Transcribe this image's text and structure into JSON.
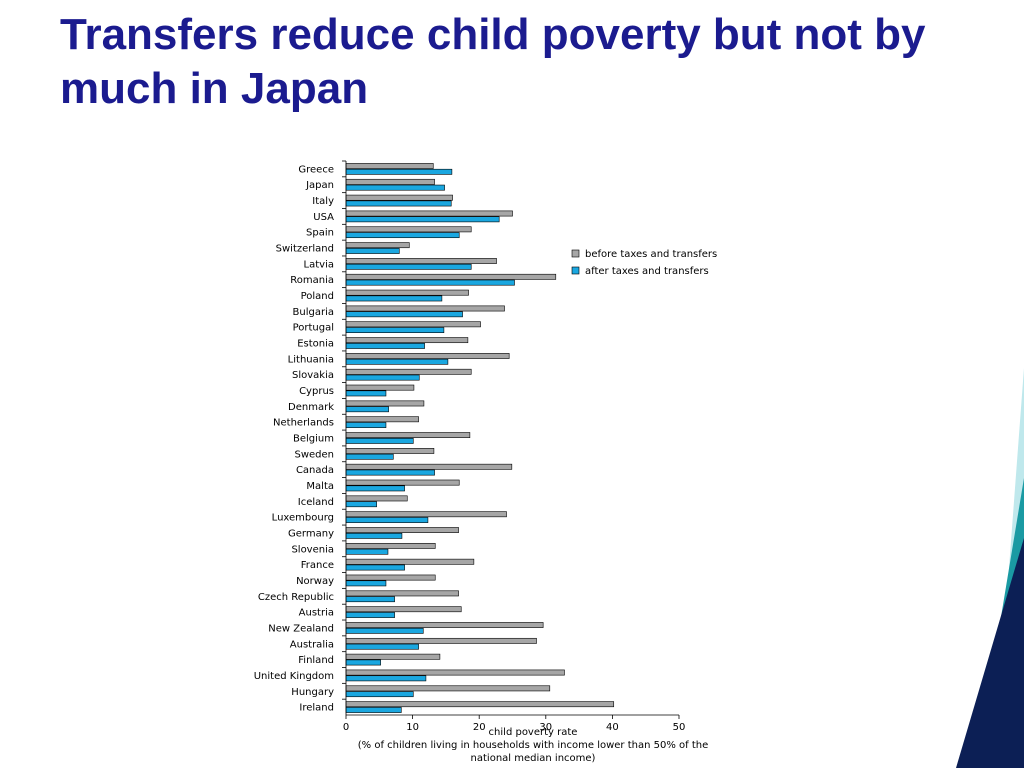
{
  "slide": {
    "title": "Transfers reduce child poverty but not by much in Japan"
  },
  "colors": {
    "title": "#1b1b8f",
    "before_bar": "#a6a6a6",
    "after_bar": "#1aa7e0",
    "bar_stroke": "#000000"
  },
  "chart_data": {
    "type": "bar",
    "orientation": "horizontal",
    "title": "",
    "categories": [
      "Greece",
      "Japan",
      "Italy",
      "USA",
      "Spain",
      "Switzerland",
      "Latvia",
      "Romania",
      "Poland",
      "Bulgaria",
      "Portugal",
      "Estonia",
      "Lithuania",
      "Slovakia",
      "Cyprus",
      "Denmark",
      "Netherlands",
      "Belgium",
      "Sweden",
      "Canada",
      "Malta",
      "Iceland",
      "Luxembourg",
      "Germany",
      "Slovenia",
      "France",
      "Norway",
      "Czech Republic",
      "Austria",
      "New Zealand",
      "Australia",
      "Finland",
      "United Kingdom",
      "Hungary",
      "Ireland"
    ],
    "series": [
      {
        "name": "before taxes and transfers",
        "values": [
          13.1,
          13.3,
          16.0,
          25.0,
          18.8,
          9.5,
          22.6,
          31.5,
          18.4,
          23.8,
          20.2,
          18.3,
          24.5,
          18.8,
          10.2,
          11.7,
          10.9,
          18.6,
          13.2,
          24.9,
          17.0,
          9.2,
          24.1,
          16.9,
          13.4,
          19.2,
          13.4,
          16.9,
          17.3,
          29.6,
          28.6,
          14.1,
          32.8,
          30.6,
          40.2
        ]
      },
      {
        "name": "after taxes and transfers",
        "values": [
          15.9,
          14.8,
          15.8,
          23.0,
          17.0,
          8.0,
          18.8,
          25.3,
          14.4,
          17.5,
          14.7,
          11.8,
          15.3,
          11.0,
          6.0,
          6.4,
          6.0,
          10.1,
          7.1,
          13.3,
          8.8,
          4.6,
          12.3,
          8.4,
          6.3,
          8.8,
          6.0,
          7.3,
          7.3,
          11.6,
          10.9,
          5.2,
          12.0,
          10.1,
          8.3
        ]
      }
    ],
    "xlim": [
      0,
      50
    ],
    "xticks": [
      "0",
      "10",
      "20",
      "30",
      "40",
      "50"
    ],
    "xlabel_lines": [
      "child poverty rate",
      "(% of children living in households with income lower than 50% of the",
      "national median income)"
    ],
    "legend_position": "right",
    "grid": false
  }
}
